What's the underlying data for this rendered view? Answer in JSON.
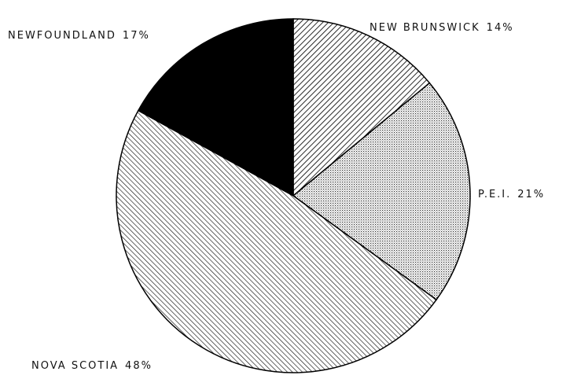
{
  "chart_data": {
    "type": "pie",
    "categories": [
      "NEW BRUNSWICK",
      "P.E.I.",
      "NOVA SCOTIA",
      "NEWFOUNDLAND"
    ],
    "values": [
      14,
      21,
      48,
      17
    ],
    "value_labels": [
      "14%",
      "21%",
      "48%",
      "17%"
    ]
  }
}
